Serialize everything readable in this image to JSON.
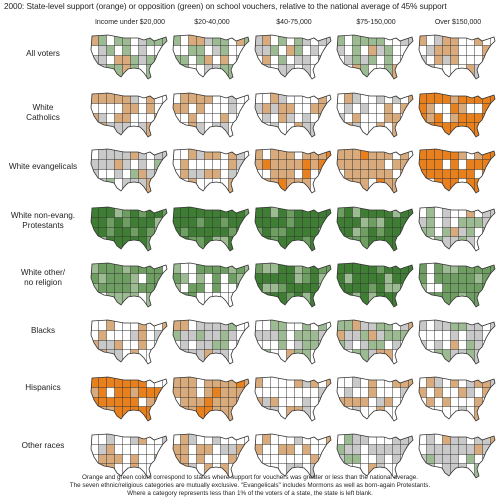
{
  "title": "2000:  State-level support (orange) or opposition (green) on school vouchers, relative to the national average of 45% support",
  "columns": [
    "Income under $20,000",
    "$20-40,000",
    "$40-75,000",
    "$75-150,000",
    "Over $150,000"
  ],
  "rows": [
    {
      "label": "All voters",
      "levels": [
        -1,
        -1,
        0,
        -1,
        1
      ]
    },
    {
      "label": "White\nCatholics",
      "levels": [
        1,
        1,
        1,
        1,
        3
      ]
    },
    {
      "label": "White evangelicals",
      "levels": [
        0,
        1,
        2,
        2,
        3
      ]
    },
    {
      "label": "White non-evang.\nProtestants",
      "levels": [
        -3,
        -3,
        -3,
        -3,
        -1
      ]
    },
    {
      "label": "White other/\nno religion",
      "levels": [
        -2,
        -2,
        -3,
        -3,
        -2
      ]
    },
    {
      "label": "Blacks",
      "levels": [
        1,
        0,
        -1,
        -1,
        0
      ]
    },
    {
      "label": "Hispanics",
      "levels": [
        3,
        2,
        1,
        1,
        1
      ]
    },
    {
      "label": "Other races",
      "levels": [
        1,
        1,
        1,
        0,
        0
      ]
    }
  ],
  "colors": {
    "orange_strong": "#e8801e",
    "orange_light": "#d9ab7c",
    "neutral": "#c9c9c9",
    "green_light": "#9dbb93",
    "green_mid": "#6f9e63",
    "green_strong": "#3e7d33",
    "blank": "#ffffff",
    "outline": "#333333"
  },
  "footnote": [
    "Orange and green colors correspond to states where support for vouchers was greater or less than the national average.",
    "The seven ethnic/religious categories are mutually exclusive.  \"Evangelicals\" includes Mormons as well as born-again Protestants.",
    "Where a category represents less than 1% of the voters of a state, the state is left blank."
  ]
}
